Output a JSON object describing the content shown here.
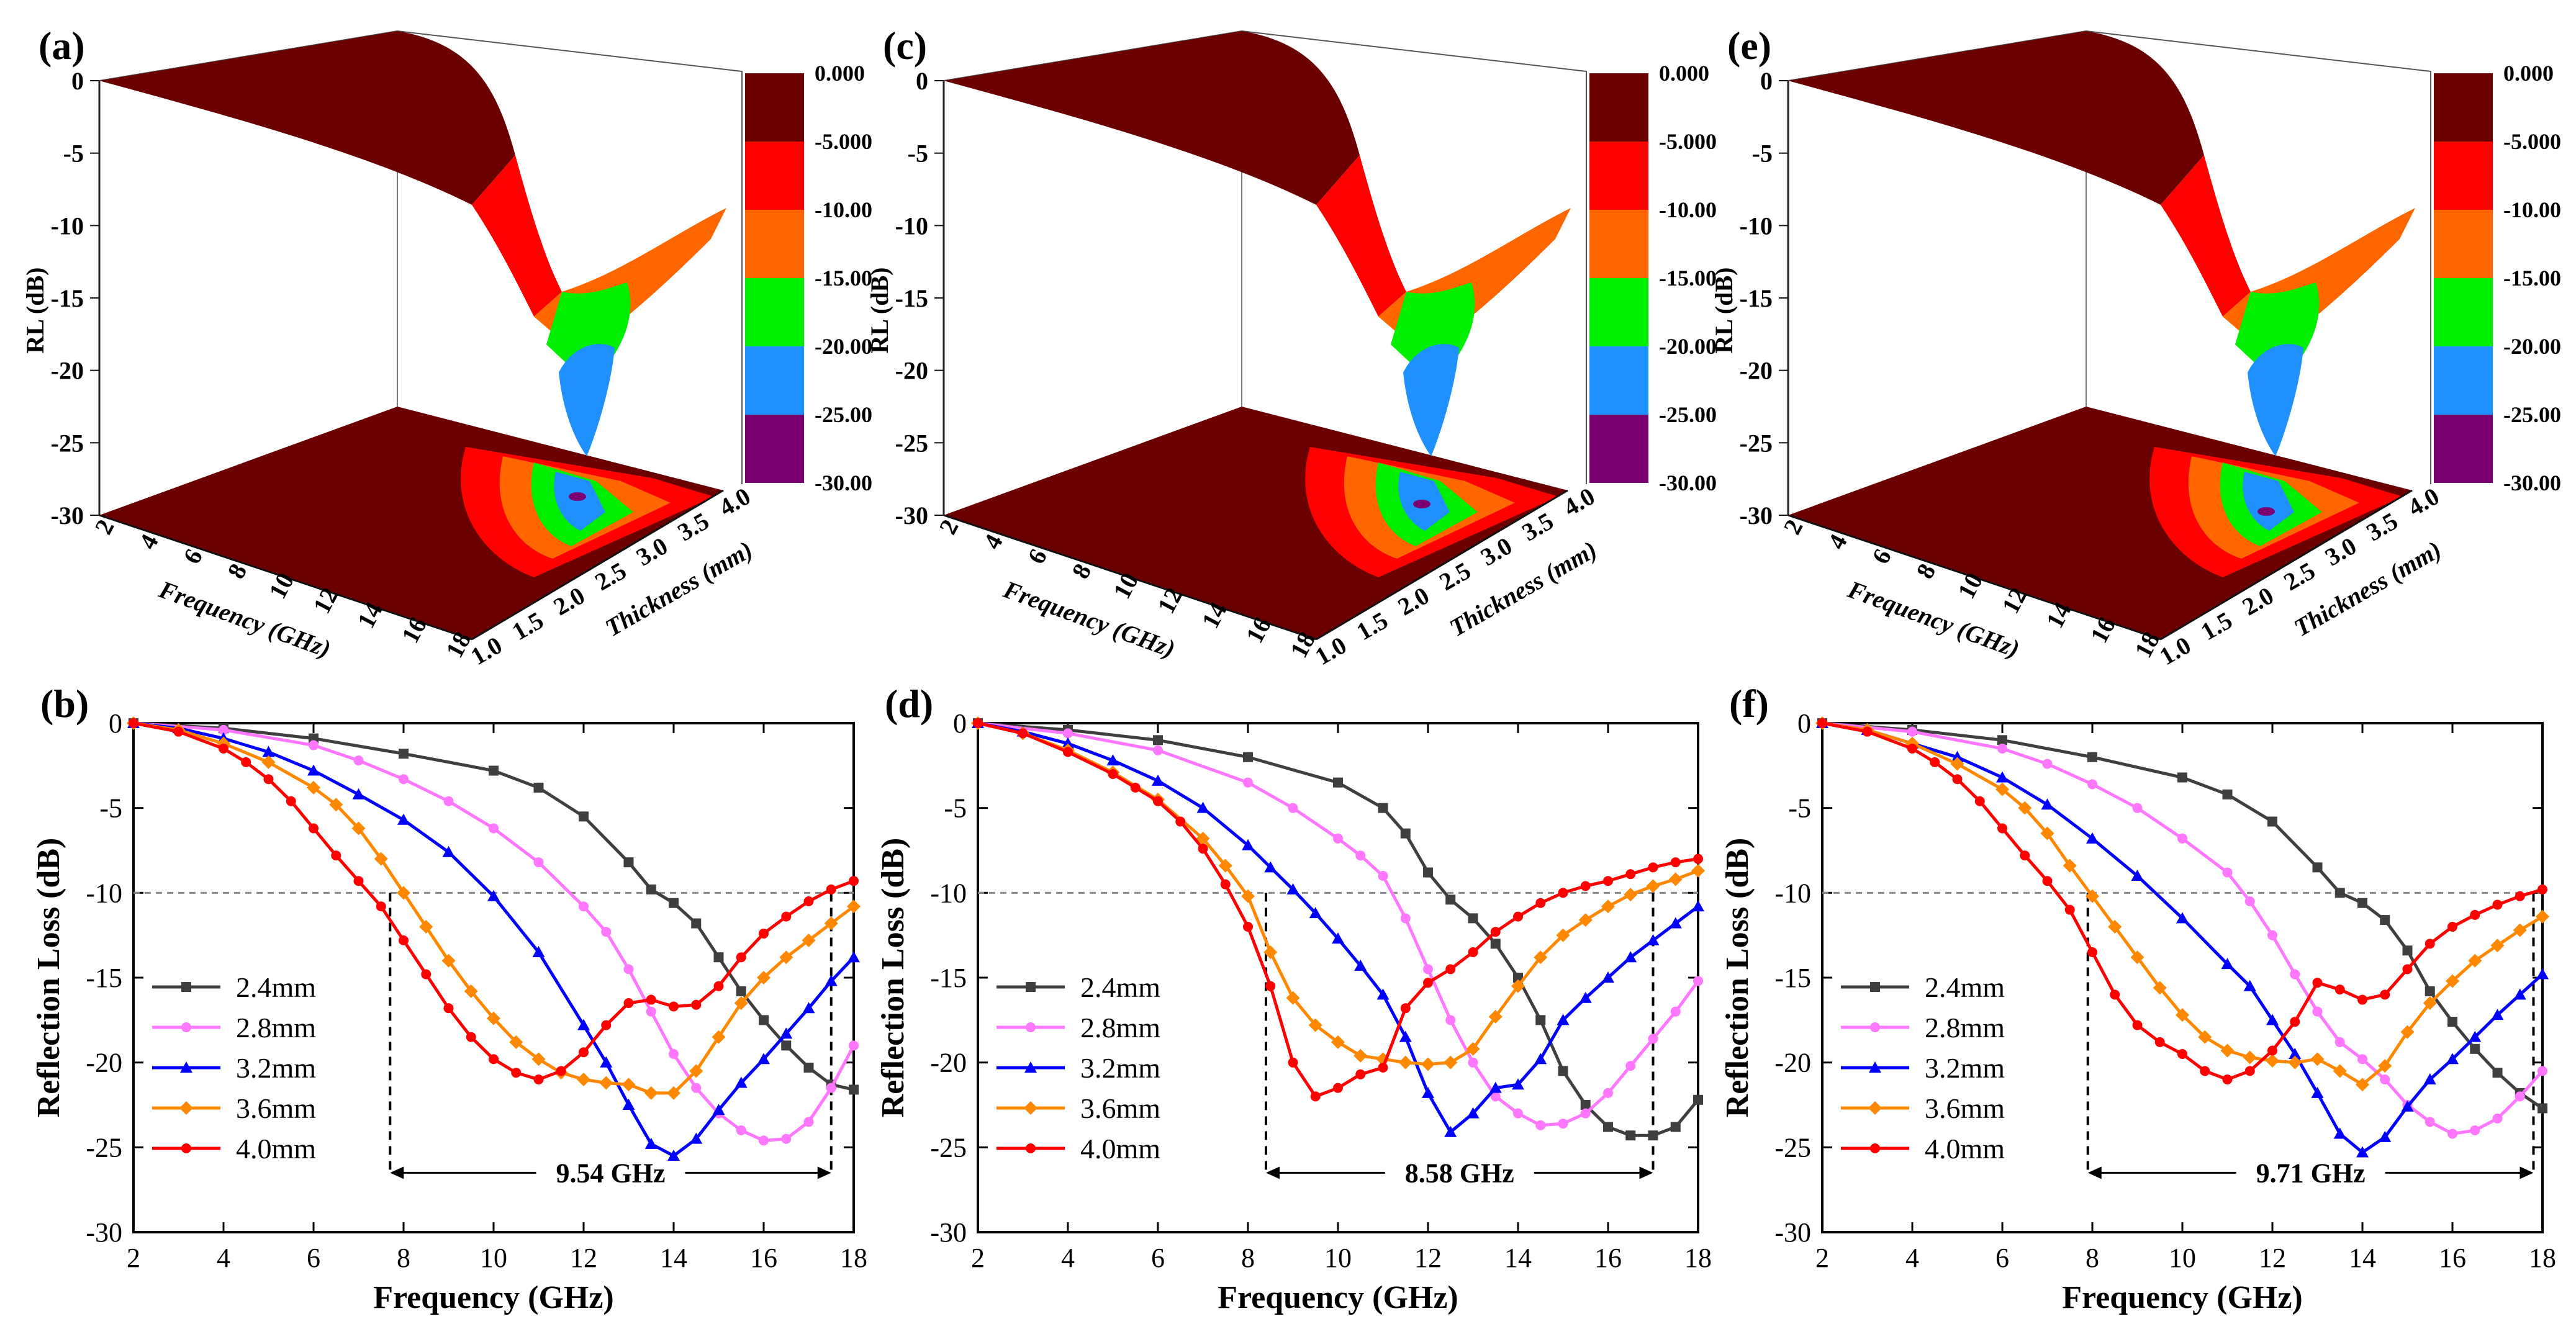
{
  "colors": {
    "bands": [
      "#6B0000",
      "#FF0000",
      "#FF6600",
      "#00EE00",
      "#1E90FF",
      "#7A0070"
    ],
    "series": [
      "#3f3f3f",
      "#ff77ff",
      "#0000ff",
      "#ff8800",
      "#ff0000"
    ],
    "axis": "#000000",
    "guide": "#888888"
  },
  "chart_data": [
    {
      "type": "surface3d",
      "panel_label": "(a)",
      "zlabel": "RL (dB)",
      "xlabel": "Frequency (GHz)",
      "ylabel": "Thickness (mm)",
      "z_ticks": [
        "0",
        "-5",
        "-10",
        "-15",
        "-20",
        "-25",
        "-30"
      ],
      "x_ticks": [
        "2",
        "4",
        "6",
        "8",
        "10",
        "12",
        "14",
        "16",
        "18"
      ],
      "y_ticks": [
        "1.0",
        "1.5",
        "2.0",
        "2.5",
        "3.0",
        "3.5",
        "4.0"
      ],
      "colorscale": [
        "0.000",
        "-5.000",
        "-10.00",
        "-15.00",
        "-20.00",
        "-25.00",
        "-30.00"
      ],
      "min_rl": -25.6
    },
    {
      "type": "line",
      "panel_label": "(b)",
      "xlabel": "Frequency (GHz)",
      "ylabel": "Reflection Loss (dB)",
      "xlim": [
        2,
        18
      ],
      "ylim": [
        -30,
        0
      ],
      "x_ticks": [
        "2",
        "4",
        "6",
        "8",
        "10",
        "12",
        "14",
        "16",
        "18"
      ],
      "y_ticks": [
        "0",
        "-5",
        "-10",
        "-15",
        "-20",
        "-25",
        "-30"
      ],
      "threshold": -10,
      "bandwidth": {
        "from": 7.7,
        "to": 17.5,
        "label": "9.54 GHz",
        "y": -26.5
      },
      "series": [
        {
          "name": "2.4mm",
          "marker": "square",
          "x": [
            2,
            4,
            6,
            8,
            10,
            11,
            12,
            13,
            13.5,
            14,
            14.5,
            15,
            15.5,
            16,
            16.5,
            17,
            17.5,
            18
          ],
          "y": [
            0,
            -0.3,
            -0.9,
            -1.8,
            -2.8,
            -3.8,
            -5.5,
            -8.2,
            -9.8,
            -10.6,
            -11.8,
            -13.8,
            -15.8,
            -17.5,
            -19,
            -20.3,
            -21.3,
            -21.6
          ]
        },
        {
          "name": "2.8mm",
          "marker": "circle",
          "x": [
            2,
            4,
            6,
            7,
            8,
            9,
            10,
            11,
            12,
            12.5,
            13,
            13.5,
            14,
            14.5,
            15,
            15.5,
            16,
            16.5,
            17,
            17.5,
            18
          ],
          "y": [
            0,
            -0.4,
            -1.3,
            -2.2,
            -3.3,
            -4.6,
            -6.2,
            -8.2,
            -10.8,
            -12.3,
            -14.5,
            -17,
            -19.5,
            -21.5,
            -23,
            -24,
            -24.6,
            -24.5,
            -23.5,
            -21.5,
            -19
          ]
        },
        {
          "name": "3.2mm",
          "marker": "triangle",
          "x": [
            2,
            3,
            4,
            5,
            6,
            7,
            8,
            9,
            10,
            11,
            12,
            12.5,
            13,
            13.5,
            14,
            14.5,
            15,
            15.5,
            16,
            16.5,
            17,
            17.5,
            18
          ],
          "y": [
            0,
            -0.3,
            -0.9,
            -1.7,
            -2.8,
            -4.2,
            -5.7,
            -7.6,
            -10.2,
            -13.5,
            -17.8,
            -20,
            -22.5,
            -24.8,
            -25.5,
            -24.5,
            -22.8,
            -21.2,
            -19.8,
            -18.3,
            -16.8,
            -15.2,
            -13.8
          ]
        },
        {
          "name": "3.6mm",
          "marker": "diamond",
          "x": [
            2,
            3,
            4,
            5,
            6,
            6.5,
            7,
            7.5,
            8,
            8.5,
            9,
            9.5,
            10,
            10.5,
            11,
            11.5,
            12,
            12.5,
            13,
            13.5,
            14,
            14.5,
            15,
            15.5,
            16,
            16.5,
            17,
            17.5,
            18
          ],
          "y": [
            0,
            -0.4,
            -1.2,
            -2.3,
            -3.8,
            -4.8,
            -6.2,
            -8,
            -10,
            -12,
            -14,
            -15.8,
            -17.4,
            -18.8,
            -19.8,
            -20.6,
            -21,
            -21.2,
            -21.3,
            -21.8,
            -21.8,
            -20.5,
            -18.5,
            -16.5,
            -15,
            -13.8,
            -12.8,
            -11.8,
            -10.8
          ]
        },
        {
          "name": "4.0mm",
          "marker": "circle",
          "x": [
            2,
            3,
            4,
            4.5,
            5,
            5.5,
            6,
            6.5,
            7,
            7.5,
            8,
            8.5,
            9,
            9.5,
            10,
            10.5,
            11,
            11.5,
            12,
            12.5,
            13,
            13.5,
            14,
            14.5,
            15,
            15.5,
            16,
            16.5,
            17,
            17.5,
            18
          ],
          "y": [
            0,
            -0.5,
            -1.5,
            -2.3,
            -3.3,
            -4.6,
            -6.2,
            -7.8,
            -9.3,
            -10.8,
            -12.8,
            -14.8,
            -16.8,
            -18.5,
            -19.8,
            -20.6,
            -21,
            -20.5,
            -19.4,
            -17.8,
            -16.5,
            -16.3,
            -16.7,
            -16.6,
            -15.5,
            -13.8,
            -12.4,
            -11.4,
            -10.5,
            -9.8,
            -9.3
          ]
        }
      ]
    },
    {
      "type": "surface3d",
      "panel_label": "(c)",
      "zlabel": "RL (dB)",
      "xlabel": "Frequency (GHz)",
      "ylabel": "Thickness (mm)",
      "z_ticks": [
        "0",
        "-5",
        "-10",
        "-15",
        "-20",
        "-25",
        "-30"
      ],
      "x_ticks": [
        "2",
        "4",
        "6",
        "8",
        "10",
        "12",
        "14",
        "16",
        "18"
      ],
      "y_ticks": [
        "1.0",
        "1.5",
        "2.0",
        "2.5",
        "3.0",
        "3.5",
        "4.0"
      ],
      "colorscale": [
        "0.000",
        "-5.000",
        "-10.00",
        "-15.00",
        "-20.00",
        "-25.00",
        "-30.00"
      ],
      "min_rl": -24.4
    },
    {
      "type": "line",
      "panel_label": "(d)",
      "xlabel": "Frequency (GHz)",
      "ylabel": "Reflection Loss (dB)",
      "xlim": [
        2,
        18
      ],
      "ylim": [
        -30,
        0
      ],
      "x_ticks": [
        "2",
        "4",
        "6",
        "8",
        "10",
        "12",
        "14",
        "16",
        "18"
      ],
      "y_ticks": [
        "0",
        "-5",
        "-10",
        "-15",
        "-20",
        "-25",
        "-30"
      ],
      "threshold": -10,
      "bandwidth": {
        "from": 8.4,
        "to": 17.0,
        "label": "8.58 GHz",
        "y": -26.5
      },
      "series": [
        {
          "name": "2.4mm",
          "marker": "square",
          "x": [
            2,
            4,
            6,
            8,
            10,
            11,
            11.5,
            12,
            12.5,
            13,
            13.5,
            14,
            14.5,
            15,
            15.5,
            16,
            16.5,
            17,
            17.5,
            18
          ],
          "y": [
            0,
            -0.4,
            -1,
            -2,
            -3.5,
            -5,
            -6.5,
            -8.8,
            -10.4,
            -11.5,
            -13,
            -15,
            -17.5,
            -20.5,
            -22.5,
            -23.8,
            -24.3,
            -24.3,
            -23.8,
            -22.2
          ]
        },
        {
          "name": "2.8mm",
          "marker": "circle",
          "x": [
            2,
            4,
            6,
            8,
            9,
            10,
            10.5,
            11,
            11.5,
            12,
            12.5,
            13,
            13.5,
            14,
            14.5,
            15,
            15.5,
            16,
            16.5,
            17,
            17.5,
            18
          ],
          "y": [
            0,
            -0.6,
            -1.6,
            -3.5,
            -5,
            -6.8,
            -7.8,
            -9,
            -11.5,
            -14.5,
            -17.5,
            -20,
            -22,
            -23,
            -23.7,
            -23.6,
            -23,
            -21.8,
            -20.2,
            -18.6,
            -17,
            -15.2
          ]
        },
        {
          "name": "3.2mm",
          "marker": "triangle",
          "x": [
            2,
            3,
            4,
            5,
            6,
            7,
            8,
            8.5,
            9,
            9.5,
            10,
            10.5,
            11,
            11.5,
            12,
            12.5,
            13,
            13.5,
            14,
            14.5,
            15,
            15.5,
            16,
            16.5,
            17,
            17.5,
            18
          ],
          "y": [
            0,
            -0.5,
            -1.2,
            -2.2,
            -3.4,
            -5,
            -7.2,
            -8.5,
            -9.8,
            -11.2,
            -12.7,
            -14.3,
            -16,
            -18.5,
            -21.8,
            -24.1,
            -23,
            -21.5,
            -21.3,
            -19.8,
            -17.5,
            -16.2,
            -15,
            -13.8,
            -12.8,
            -11.8,
            -10.8
          ]
        },
        {
          "name": "3.6mm",
          "marker": "diamond",
          "x": [
            2,
            3,
            4,
            5,
            6,
            7,
            7.5,
            8,
            8.5,
            9,
            9.5,
            10,
            10.5,
            11,
            11.5,
            12,
            12.5,
            13,
            13.5,
            14,
            14.5,
            15,
            15.5,
            16,
            16.5,
            17,
            17.5,
            18
          ],
          "y": [
            0,
            -0.6,
            -1.6,
            -2.9,
            -4.5,
            -6.8,
            -8.4,
            -10.2,
            -13.5,
            -16.2,
            -17.8,
            -18.8,
            -19.6,
            -19.8,
            -20,
            -20.1,
            -20,
            -19.2,
            -17.3,
            -15.5,
            -13.8,
            -12.5,
            -11.6,
            -10.8,
            -10.1,
            -9.6,
            -9.2,
            -8.7
          ]
        },
        {
          "name": "4.0mm",
          "marker": "circle",
          "x": [
            2,
            3,
            4,
            5,
            5.5,
            6,
            6.5,
            7,
            7.5,
            8,
            8.5,
            9,
            9.5,
            10,
            10.5,
            11,
            11.5,
            12,
            12.5,
            13,
            13.5,
            14,
            14.5,
            15,
            15.5,
            16,
            16.5,
            17,
            17.5,
            18
          ],
          "y": [
            0,
            -0.6,
            -1.7,
            -3,
            -3.8,
            -4.6,
            -5.8,
            -7.4,
            -9.5,
            -12,
            -15.5,
            -20,
            -22,
            -21.5,
            -20.7,
            -20.3,
            -16.8,
            -15.3,
            -14.5,
            -13.5,
            -12.3,
            -11.4,
            -10.6,
            -10,
            -9.6,
            -9.3,
            -8.9,
            -8.5,
            -8.2,
            -8
          ]
        }
      ]
    },
    {
      "type": "surface3d",
      "panel_label": "(e)",
      "zlabel": "RL (dB)",
      "xlabel": "Frequency (GHz)",
      "ylabel": "Thickness (mm)",
      "z_ticks": [
        "0",
        "-5",
        "-10",
        "-15",
        "-20",
        "-25",
        "-30"
      ],
      "x_ticks": [
        "2",
        "4",
        "6",
        "8",
        "10",
        "12",
        "14",
        "16",
        "18"
      ],
      "y_ticks": [
        "1.0",
        "1.5",
        "2.0",
        "2.5",
        "3.0",
        "3.5",
        "4.0"
      ],
      "colorscale": [
        "0.000",
        "-5.000",
        "-10.00",
        "-15.00",
        "-20.00",
        "-25.00",
        "-30.00"
      ],
      "min_rl": -25.3
    },
    {
      "type": "line",
      "panel_label": "(f)",
      "xlabel": "Frequency (GHz)",
      "ylabel": "Reflection Loss (dB)",
      "xlim": [
        2,
        18
      ],
      "ylim": [
        -30,
        0
      ],
      "x_ticks": [
        "2",
        "4",
        "6",
        "8",
        "10",
        "12",
        "14",
        "16",
        "18"
      ],
      "y_ticks": [
        "0",
        "-5",
        "-10",
        "-15",
        "-20",
        "-25",
        "-30"
      ],
      "threshold": -10,
      "bandwidth": {
        "from": 7.9,
        "to": 17.8,
        "label": "9.71 GHz",
        "y": -26.5
      },
      "series": [
        {
          "name": "2.4mm",
          "marker": "square",
          "x": [
            2,
            4,
            6,
            8,
            10,
            11,
            12,
            13,
            13.5,
            14,
            14.5,
            15,
            15.5,
            16,
            16.5,
            17,
            17.5,
            18
          ],
          "y": [
            0,
            -0.4,
            -1,
            -2,
            -3.2,
            -4.2,
            -5.8,
            -8.5,
            -10,
            -10.6,
            -11.6,
            -13.4,
            -15.8,
            -17.6,
            -19.2,
            -20.6,
            -21.8,
            -22.7
          ]
        },
        {
          "name": "2.8mm",
          "marker": "circle",
          "x": [
            2,
            4,
            6,
            7,
            8,
            9,
            10,
            11,
            11.5,
            12,
            12.5,
            13,
            13.5,
            14,
            14.5,
            15,
            15.5,
            16,
            16.5,
            17,
            17.5,
            18
          ],
          "y": [
            0,
            -0.5,
            -1.5,
            -2.4,
            -3.6,
            -5,
            -6.8,
            -8.8,
            -10.5,
            -12.5,
            -14.8,
            -17,
            -18.8,
            -19.8,
            -21,
            -22.5,
            -23.5,
            -24.2,
            -24,
            -23.3,
            -22,
            -20.5
          ]
        },
        {
          "name": "3.2mm",
          "marker": "triangle",
          "x": [
            2,
            3,
            4,
            5,
            6,
            7,
            8,
            9,
            10,
            11,
            11.5,
            12,
            12.5,
            13,
            13.5,
            14,
            14.5,
            15,
            15.5,
            16,
            16.5,
            17,
            17.5,
            18
          ],
          "y": [
            0,
            -0.4,
            -1.2,
            -2,
            -3.2,
            -4.8,
            -6.8,
            -9,
            -11.5,
            -14.2,
            -15.5,
            -17.5,
            -19.5,
            -21.8,
            -24.2,
            -25.3,
            -24.4,
            -22.6,
            -21,
            -19.8,
            -18.5,
            -17.2,
            -16,
            -14.8
          ]
        },
        {
          "name": "3.6mm",
          "marker": "diamond",
          "x": [
            2,
            3,
            4,
            5,
            6,
            6.5,
            7,
            7.5,
            8,
            8.5,
            9,
            9.5,
            10,
            10.5,
            11,
            11.5,
            12,
            12.5,
            13,
            13.5,
            14,
            14.5,
            15,
            15.5,
            16,
            16.5,
            17,
            17.5,
            18
          ],
          "y": [
            0,
            -0.4,
            -1.2,
            -2.4,
            -3.9,
            -5,
            -6.5,
            -8.4,
            -10.2,
            -12,
            -13.8,
            -15.6,
            -17.2,
            -18.5,
            -19.3,
            -19.7,
            -19.9,
            -20,
            -19.8,
            -20.5,
            -21.3,
            -20.2,
            -18.2,
            -16.5,
            -15.2,
            -14,
            -13.1,
            -12.2,
            -11.4
          ]
        },
        {
          "name": "4.0mm",
          "marker": "circle",
          "x": [
            2,
            3,
            4,
            4.5,
            5,
            5.5,
            6,
            6.5,
            7,
            7.5,
            8,
            8.5,
            9,
            9.5,
            10,
            10.5,
            11,
            11.5,
            12,
            12.5,
            13,
            13.5,
            14,
            14.5,
            15,
            15.5,
            16,
            16.5,
            17,
            17.5,
            18
          ],
          "y": [
            0,
            -0.5,
            -1.5,
            -2.3,
            -3.3,
            -4.6,
            -6.2,
            -7.8,
            -9.3,
            -11,
            -13.5,
            -16,
            -17.8,
            -18.8,
            -19.5,
            -20.5,
            -21,
            -20.5,
            -19.3,
            -17.6,
            -15.3,
            -15.7,
            -16.3,
            -16,
            -14.5,
            -13,
            -12,
            -11.3,
            -10.7,
            -10.2,
            -9.8
          ]
        }
      ]
    }
  ]
}
